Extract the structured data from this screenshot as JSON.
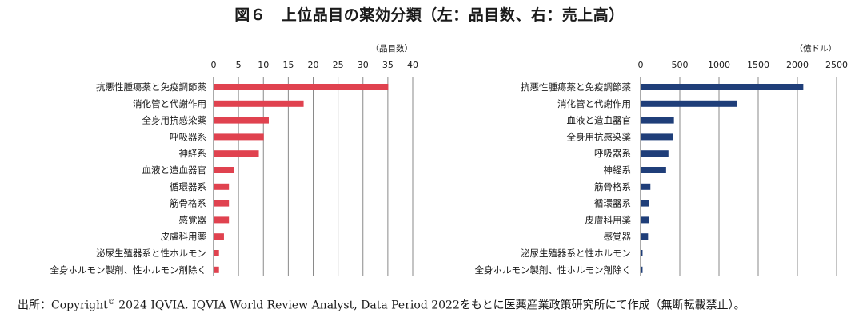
{
  "title": "図６　上位品目の薬効分類（左：品目数、右：売上高）",
  "source": {
    "prefix": "出所：Copyright",
    "sup": "©",
    "text": " 2024 IQVIA. IQVIA World Review Analyst, Data Period 2022をもとに医薬産業政策研究所にて作成（無断転載禁止）。"
  },
  "chart_data": [
    {
      "type": "bar",
      "orientation": "horizontal",
      "unit": "（品目数）",
      "color": "#e0424f",
      "xlim": [
        0,
        40
      ],
      "ticks": [
        0,
        5,
        10,
        15,
        20,
        25,
        30,
        35,
        40
      ],
      "categories": [
        "抗悪性腫瘍薬と免疫調節薬",
        "消化管と代謝作用",
        "全身用抗感染薬",
        "呼吸器系",
        "神経系",
        "血液と造血器官",
        "循環器系",
        "筋骨格系",
        "感覚器",
        "皮膚科用薬",
        "泌尿生殖器系と性ホルモン",
        "全身ホルモン製剤、性ホルモン剤除く"
      ],
      "values": [
        35,
        18,
        11,
        10,
        9,
        4,
        3,
        3,
        3,
        2,
        1,
        1
      ]
    },
    {
      "type": "bar",
      "orientation": "horizontal",
      "unit": "（億ドル）",
      "color": "#1f3e79",
      "xlim": [
        0,
        2500
      ],
      "ticks": [
        0,
        500,
        1000,
        1500,
        2000,
        2500
      ],
      "categories": [
        "抗悪性腫瘍薬と免疫調節薬",
        "消化管と代謝作用",
        "血液と造血器官",
        "全身用抗感染薬",
        "呼吸器系",
        "神経系",
        "筋骨格系",
        "循環器系",
        "皮膚科用薬",
        "感覚器",
        "泌尿生殖器系と性ホルモン",
        "全身ホルモン製剤、性ホルモン剤除く"
      ],
      "values": [
        2070,
        1220,
        420,
        410,
        350,
        320,
        120,
        100,
        100,
        90,
        20,
        20
      ]
    }
  ]
}
